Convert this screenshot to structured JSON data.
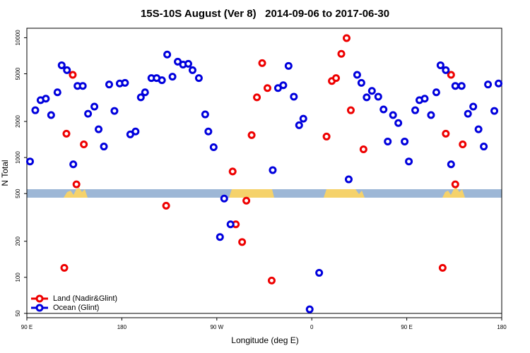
{
  "chart_data": {
    "type": "scatter",
    "title": "15S-10S August (Ver 8)   2014-09-06 to 2017-06-30",
    "xlabel": "Longitude (deg E)",
    "ylabel": "N Total",
    "xlim": [
      90,
      540
    ],
    "xticks": [
      {
        "value": 90,
        "label": "90 E"
      },
      180,
      {
        "value": 270,
        "label": "90 W"
      },
      {
        "value": 360,
        "label": "0"
      },
      {
        "value": 450,
        "label": "90 E"
      },
      {
        "value": 540,
        "label": "180"
      }
    ],
    "ylim": [
      46,
      12000
    ],
    "yticks": [
      50,
      100,
      200,
      500,
      1000,
      2000,
      5000,
      10000
    ],
    "log_y": true,
    "legend": "bottom-left",
    "series": [
      {
        "name": "Land (Nadir&Glint)",
        "color": "#ee0000",
        "x": [
          125.5,
          127.5,
          133.5,
          137,
          144,
          222,
          285,
          288,
          294,
          298,
          303,
          308,
          313,
          318,
          322,
          374,
          379,
          383,
          388,
          393,
          397,
          409,
          484,
          487,
          492,
          496,
          503
        ],
        "values": [
          120,
          1580,
          4900,
          597,
          1288,
          396,
          765,
          277,
          197,
          436,
          1538,
          3180,
          6140,
          3800,
          94,
          1496,
          4350,
          4600,
          7340,
          9930,
          2480,
          1170,
          120,
          1580,
          4900,
          597,
          1288
        ]
      },
      {
        "name": "Ocean (Glint)",
        "color": "#0000dd",
        "x": [
          93,
          98,
          103,
          108,
          113,
          119,
          123,
          128,
          134,
          138,
          143,
          148,
          154,
          158,
          163,
          168,
          173,
          178,
          183,
          188,
          193,
          198,
          202,
          208,
          213,
          218,
          223,
          228,
          233,
          238,
          243,
          247,
          253,
          259,
          262,
          267,
          277,
          273,
          283,
          323,
          328,
          333,
          338,
          343,
          348,
          352,
          358,
          367,
          395,
          403,
          407,
          412,
          417,
          423,
          428,
          432,
          437,
          442,
          448,
          452,
          458,
          462,
          467,
          473,
          478,
          482,
          487,
          492,
          496,
          502,
          508,
          513,
          518,
          523,
          527,
          533,
          537
        ],
        "values": [
          927,
          2480,
          3010,
          3100,
          2260,
          3500,
          5890,
          5360,
          877,
          3960,
          3960,
          2320,
          2660,
          1720,
          1235,
          4070,
          2450,
          4150,
          4200,
          1560,
          1650,
          3180,
          3500,
          4600,
          4600,
          4420,
          7240,
          4730,
          6310,
          5970,
          6060,
          5360,
          4600,
          2290,
          1650,
          1220,
          454,
          217,
          277,
          785,
          3800,
          4010,
          5820,
          3220,
          1860,
          2110,
          54,
          109,
          657,
          4900,
          4200,
          3180,
          3600,
          3220,
          2520,
          1360,
          2260,
          1940,
          1360,
          927,
          2480,
          3010,
          3100,
          2260,
          3500,
          5890,
          5360,
          877,
          3960,
          3960,
          2320,
          2660,
          1720,
          1235,
          4070,
          2450,
          4150
        ]
      }
    ]
  }
}
